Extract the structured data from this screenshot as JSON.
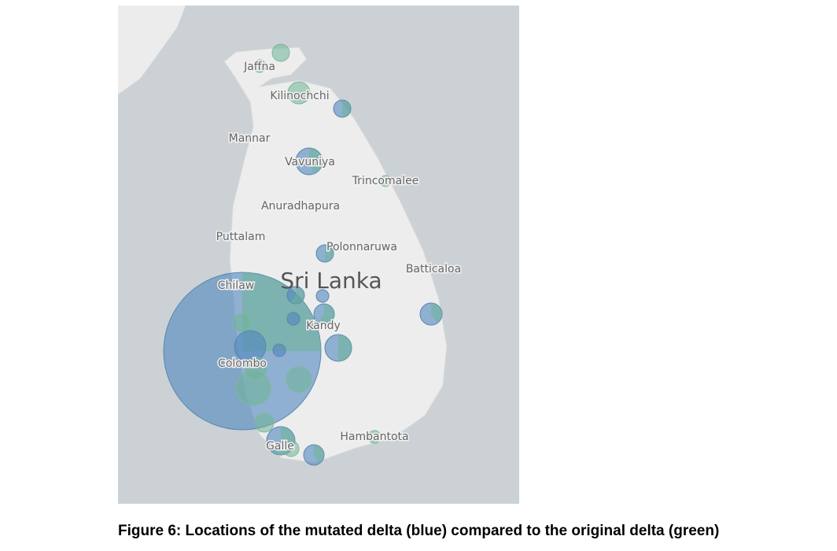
{
  "map": {
    "title": "Sri Lanka",
    "places": [
      "Jaffna",
      "Kilinochchi",
      "Mannar",
      "Vavuniya",
      "Trincomalee",
      "Anuradhapura",
      "Puttalam",
      "Polonnaruwa",
      "Batticaloa",
      "Chilaw",
      "Kandy",
      "Colombo",
      "Galle",
      "Hambantota"
    ]
  },
  "caption": "Figure 6: Locations of the mutated delta (blue) compared to the original delta (green)"
}
